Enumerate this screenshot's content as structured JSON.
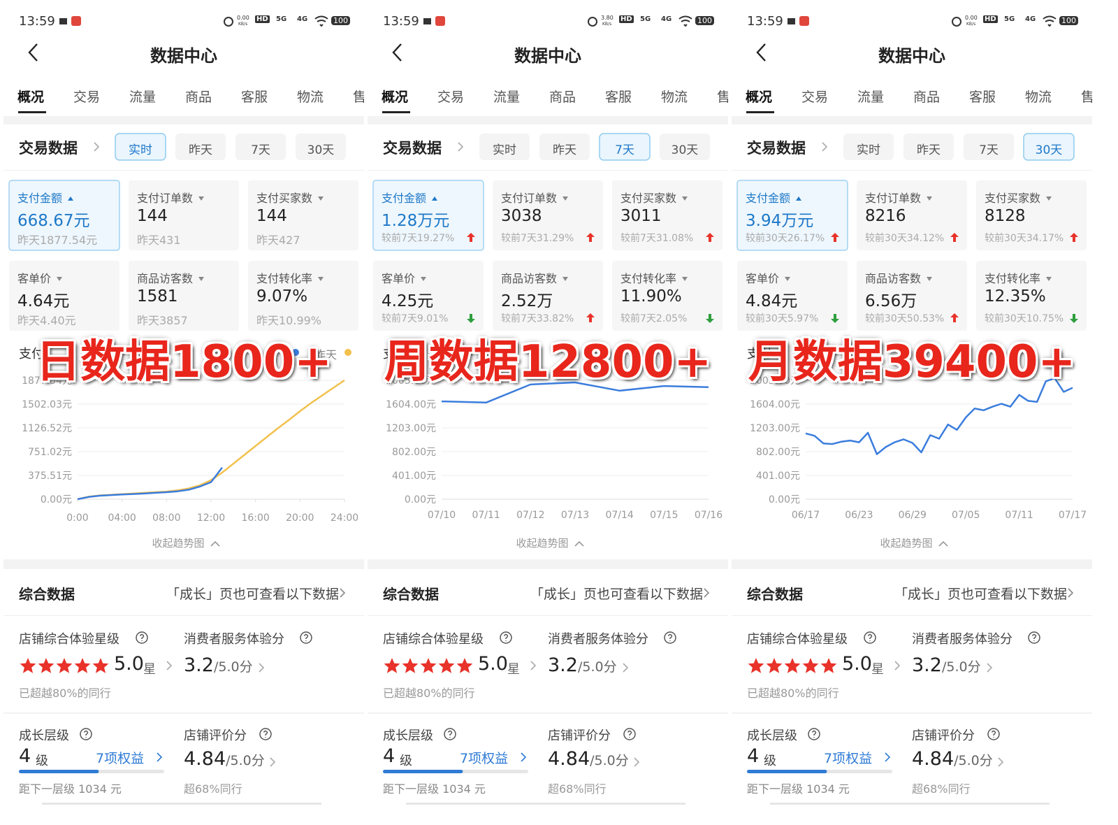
{
  "panels": [
    {
      "status_time": "13:59",
      "net_speed": "0.00",
      "net_unit": "KB/s",
      "status_icons": [
        "HD",
        "5G",
        "4G"
      ],
      "battery": "100",
      "nav_title": "数据中心",
      "tabs": [
        "概况",
        "交易",
        "流量",
        "商品",
        "客服",
        "物流",
        "售"
      ],
      "section_title": "交易数据",
      "periods": [
        "实时",
        "昨天",
        "7天",
        "30天"
      ],
      "active_period": 0,
      "metrics": [
        {
          "label": "支付金额",
          "value": "668.67元",
          "sub": "昨天1877.54元",
          "trend": null
        },
        {
          "label": "支付订单数",
          "value": "144",
          "sub": "昨天431",
          "trend": null
        },
        {
          "label": "支付买家数",
          "value": "144",
          "sub": "昨天427",
          "trend": null
        },
        {
          "label": "客单价",
          "value": "4.64元",
          "sub": "昨天4.40元",
          "trend": null
        },
        {
          "label": "商品访客数",
          "value": "1581",
          "sub": "昨天3857",
          "trend": null
        },
        {
          "label": "支付转化率",
          "value": "9.07%",
          "sub": "昨天10.99%",
          "trend": null
        }
      ],
      "chart": {
        "type": "line",
        "title": "支付",
        "x": [
          0,
          1,
          2,
          3,
          4,
          5,
          6,
          7,
          8,
          9,
          10,
          11,
          12,
          13,
          14,
          15,
          16,
          17,
          18,
          19,
          20,
          21,
          22,
          23,
          24
        ],
        "xlim": [
          0,
          24
        ],
        "xticks": [
          {
            "value": 0,
            "label": "0:00"
          },
          {
            "value": 4,
            "label": "04:00"
          },
          {
            "value": 8,
            "label": "08:00"
          },
          {
            "value": 12,
            "label": "12:00"
          },
          {
            "value": 16,
            "label": "16:00"
          },
          {
            "value": 20,
            "label": "20:00"
          },
          {
            "value": 24,
            "label": "24:00"
          }
        ],
        "ylim": [
          0,
          1877.54
        ],
        "yticks": [
          {
            "value": 0,
            "label": "0.00元"
          },
          {
            "value": 375.51,
            "label": "375.51元"
          },
          {
            "value": 751.02,
            "label": "751.02元"
          },
          {
            "value": 1126.52,
            "label": "1126.52元"
          },
          {
            "value": 1502.03,
            "label": "1502.03元"
          },
          {
            "value": 1877.54,
            "label": "1877.54元"
          }
        ],
        "series": [
          {
            "color": "#3b7ddd",
            "values": [
              0,
              35,
              55,
              65,
              75,
              82,
              90,
              100,
              110,
              125,
              150,
              200,
              270,
              500,
              null,
              null,
              null,
              null,
              null,
              null,
              null,
              null,
              null,
              null,
              null
            ]
          },
          {
            "name": "昨天",
            "color": "#f2c04c",
            "values": [
              0,
              40,
              60,
              70,
              80,
              90,
              100,
              110,
              120,
              140,
              170,
              220,
              300,
              420,
              560,
              700,
              840,
              980,
              1120,
              1250,
              1390,
              1520,
              1640,
              1760,
              1877.54
            ]
          }
        ]
      },
      "overlay": "日数据1800+",
      "collapse": "收起趋势图",
      "summary": {
        "title": "综合数据",
        "link": "「成长」页也可查看以下数据",
        "star_label": "店铺综合体验星级",
        "star_score": "5.0",
        "star_unit": "星",
        "star_note": "已超越80%的同行",
        "service_label": "消费者服务体验分",
        "service_score": "3.2",
        "service_max": "/5.0分",
        "level_label": "成长层级",
        "level": "4",
        "level_unit": "级",
        "benefits": "7项权益",
        "level_progress": 0.55,
        "level_note": "距下一层级 1034 元",
        "rating_label": "店铺评价分",
        "rating_score": "4.84",
        "rating_max": "/5.0分",
        "rating_note": "超68%同行"
      }
    },
    {
      "status_time": "13:59",
      "net_speed": "3.80",
      "net_unit": "KB/s",
      "status_icons": [
        "HD",
        "5G",
        "4G"
      ],
      "battery": "100",
      "nav_title": "数据中心",
      "tabs": [
        "概况",
        "交易",
        "流量",
        "商品",
        "客服",
        "物流",
        "售"
      ],
      "section_title": "交易数据",
      "periods": [
        "实时",
        "昨天",
        "7天",
        "30天"
      ],
      "active_period": 2,
      "metrics": [
        {
          "label": "支付金额",
          "value": "1.28万元",
          "sub": "较前7天19.27%",
          "trend": "up"
        },
        {
          "label": "支付订单数",
          "value": "3038",
          "sub": "较前7天31.29%",
          "trend": "up"
        },
        {
          "label": "支付买家数",
          "value": "3011",
          "sub": "较前7天31.08%",
          "trend": "up"
        },
        {
          "label": "客单价",
          "value": "4.25元",
          "sub": "较前7天9.01%",
          "trend": "down"
        },
        {
          "label": "商品访客数",
          "value": "2.52万",
          "sub": "较前7天33.82%",
          "trend": "up"
        },
        {
          "label": "支付转化率",
          "value": "11.90%",
          "sub": "较前7天2.05%",
          "trend": "down"
        }
      ],
      "chart": {
        "type": "line",
        "title": "支付",
        "categories": [
          "07/10",
          "07/11",
          "07/12",
          "07/13",
          "07/14",
          "07/15",
          "07/16"
        ],
        "ylim": [
          0,
          2005
        ],
        "yticks": [
          {
            "value": 0,
            "label": "0.00元"
          },
          {
            "value": 401,
            "label": "401.00元"
          },
          {
            "value": 802,
            "label": "802.00元"
          },
          {
            "value": 1203,
            "label": "1203.00元"
          },
          {
            "value": 1604,
            "label": "1604.00元"
          },
          {
            "value": 2005,
            "label": "2005.00元"
          }
        ],
        "series": [
          {
            "color": "#3b7ddd",
            "values": [
              1650,
              1630,
              1935,
              1970,
              1830,
              1910,
              1890
            ]
          }
        ]
      },
      "overlay": "周数据12800+",
      "collapse": "收起趋势图",
      "summary": {
        "title": "综合数据",
        "link": "「成长」页也可查看以下数据",
        "star_label": "店铺综合体验星级",
        "star_score": "5.0",
        "star_unit": "星",
        "star_note": "已超越80%的同行",
        "service_label": "消费者服务体验分",
        "service_score": "3.2",
        "service_max": "/5.0分",
        "level_label": "成长层级",
        "level": "4",
        "level_unit": "级",
        "benefits": "7项权益",
        "level_progress": 0.55,
        "level_note": "距下一层级 1034 元",
        "rating_label": "店铺评价分",
        "rating_score": "4.84",
        "rating_max": "/5.0分",
        "rating_note": "超68%同行"
      }
    },
    {
      "status_time": "13:59",
      "net_speed": "0.00",
      "net_unit": "KB/s",
      "status_icons": [
        "HD",
        "5G",
        "4G"
      ],
      "battery": "100",
      "nav_title": "数据中心",
      "tabs": [
        "概况",
        "交易",
        "流量",
        "商品",
        "客服",
        "物流",
        "售"
      ],
      "section_title": "交易数据",
      "periods": [
        "实时",
        "昨天",
        "7天",
        "30天"
      ],
      "active_period": 3,
      "metrics": [
        {
          "label": "支付金额",
          "value": "3.94万元",
          "sub": "较前30天26.17%",
          "trend": "up"
        },
        {
          "label": "支付订单数",
          "value": "8216",
          "sub": "较前30天34.12%",
          "trend": "up"
        },
        {
          "label": "支付买家数",
          "value": "8128",
          "sub": "较前30天34.17%",
          "trend": "up"
        },
        {
          "label": "客单价",
          "value": "4.84元",
          "sub": "较前30天5.97%",
          "trend": "down"
        },
        {
          "label": "商品访客数",
          "value": "6.56万",
          "sub": "较前30天50.53%",
          "trend": "up"
        },
        {
          "label": "支付转化率",
          "value": "12.35%",
          "sub": "较前30天10.75%",
          "trend": "down"
        }
      ],
      "chart": {
        "type": "line",
        "title": "支付",
        "categories": [
          "06/17",
          null,
          null,
          null,
          null,
          null,
          "06/23",
          null,
          null,
          null,
          null,
          null,
          "06/29",
          null,
          null,
          null,
          null,
          null,
          "07/05",
          null,
          null,
          null,
          null,
          null,
          "07/11",
          null,
          null,
          null,
          null,
          null,
          "07/17"
        ],
        "ylim": [
          0,
          2005
        ],
        "yticks": [
          {
            "value": 0,
            "label": "0.00元"
          },
          {
            "value": 401,
            "label": "401.00元"
          },
          {
            "value": 802,
            "label": "802.00元"
          },
          {
            "value": 1203,
            "label": "1203.00元"
          },
          {
            "value": 1604,
            "label": "1604.00元"
          },
          {
            "value": 2005,
            "label": "2005.00元"
          }
        ],
        "series": [
          {
            "color": "#3b7ddd",
            "values": [
              1110,
              1070,
              940,
              930,
              970,
              990,
              960,
              1120,
              760,
              880,
              960,
              1010,
              950,
              790,
              1080,
              1020,
              1260,
              1170,
              1380,
              1530,
              1500,
              1560,
              1610,
              1560,
              1760,
              1660,
              1640,
              1990,
              2040,
              1810,
              1880
            ]
          }
        ]
      },
      "overlay": "月数据39400+",
      "collapse": "收起趋势图",
      "summary": {
        "title": "综合数据",
        "link": "「成长」页也可查看以下数据",
        "star_label": "店铺综合体验星级",
        "star_score": "5.0",
        "star_unit": "星",
        "star_note": "已超越80%的同行",
        "service_label": "消费者服务体验分",
        "service_score": "3.2",
        "service_max": "/5.0分",
        "level_label": "成长层级",
        "level": "4",
        "level_unit": "级",
        "benefits": "7项权益",
        "level_progress": 0.55,
        "level_note": "距下一层级 1034 元",
        "rating_label": "店铺评价分",
        "rating_score": "4.84",
        "rating_max": "/5.0分",
        "rating_note": "超68%同行"
      }
    }
  ]
}
